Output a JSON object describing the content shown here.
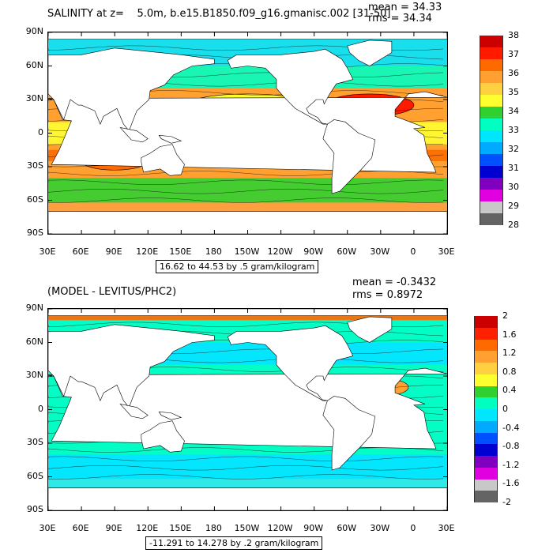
{
  "panels": [
    {
      "title": "SALINITY at z=    5.0m, b.e15.B1850.f09_g16.gmanisc.002 [31-50]",
      "stat1": "mean = 34.33",
      "stat2": "rms = 34.34",
      "contour_info": "16.62 to 44.53 by .5 gram/kilogram",
      "colorbar_labels": [
        "38",
        "37",
        "36",
        "35",
        "34",
        "33",
        "32",
        "31",
        "30",
        "29",
        "28"
      ],
      "colorbar_colors": [
        "#cc0000",
        "#ff1a00",
        "#ff6a00",
        "#ffa030",
        "#ffd040",
        "#ffff30",
        "#30d030",
        "#00ffc0",
        "#00e6ff",
        "#00aaff",
        "#0050ff",
        "#0000d0",
        "#8000c0",
        "#e000e0",
        "#c8c8c8",
        "#646464"
      ],
      "ocean_fill": "#ffa040",
      "land_fill": "#ffffff"
    },
    {
      "title": "(MODEL - LEVITUS/PHC2)",
      "stat1": "mean = -0.3432",
      "stat2": "rms = 0.8972",
      "contour_info": "-11.291 to 14.278 by .2 gram/kilogram",
      "colorbar_labels": [
        "2",
        "1.6",
        "1.2",
        "0.8",
        "0.4",
        "0",
        "-0.4",
        "-0.8",
        "-1.2",
        "-1.6",
        "-2"
      ],
      "colorbar_colors": [
        "#cc0000",
        "#ff2000",
        "#ff6a00",
        "#ffa030",
        "#ffd040",
        "#ffff30",
        "#30d030",
        "#00ffc0",
        "#00e6ff",
        "#00aaff",
        "#0050ff",
        "#0000d0",
        "#8000c0",
        "#e000e0",
        "#c8c8c8",
        "#646464"
      ],
      "ocean_fill": "#30e8e8",
      "land_fill": "#ffffff"
    }
  ],
  "lat_labels": [
    "90N",
    "60N",
    "30N",
    "0",
    "30S",
    "60S",
    "90S"
  ],
  "lon_labels": [
    "30E",
    "60E",
    "90E",
    "120E",
    "150E",
    "180",
    "150W",
    "120W",
    "90W",
    "60W",
    "30W",
    "0",
    "30E"
  ]
}
